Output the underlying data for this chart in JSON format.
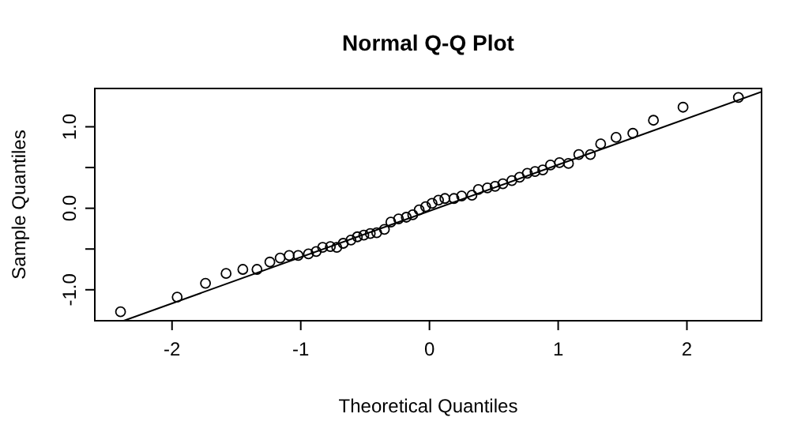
{
  "chart_data": {
    "type": "scatter",
    "title": "Normal Q-Q Plot",
    "xlabel": "Theoretical Quantiles",
    "ylabel": "Sample Quantiles",
    "xlim": [
      -2.6,
      2.58
    ],
    "ylim": [
      -1.38,
      1.47
    ],
    "xticks": [
      -2,
      -1,
      0,
      1,
      2
    ],
    "yticks": [
      {
        "value": -1,
        "label": "-1.0"
      },
      {
        "value": -0.5,
        "label": null
      },
      {
        "value": 0,
        "label": "0.0"
      },
      {
        "value": 0.5,
        "label": null
      },
      {
        "value": 1,
        "label": "1.0"
      }
    ],
    "grid": false,
    "series": [
      {
        "color": "#000000",
        "marker": "circle",
        "x": [
          -2.4,
          -1.96,
          -1.74,
          -1.58,
          -1.45,
          -1.34,
          -1.24,
          -1.16,
          -1.09,
          -1.02,
          -0.94,
          -0.88,
          -0.83,
          -0.77,
          -0.72,
          -0.67,
          -0.61,
          -0.56,
          -0.51,
          -0.46,
          -0.41,
          -0.35,
          -0.3,
          -0.24,
          -0.18,
          -0.13,
          -0.08,
          -0.03,
          0.02,
          0.07,
          0.12,
          0.19,
          0.25,
          0.33,
          0.38,
          0.45,
          0.51,
          0.57,
          0.64,
          0.7,
          0.76,
          0.82,
          0.88,
          0.94,
          1.01,
          1.08,
          1.16,
          1.25,
          1.33,
          1.45,
          1.58,
          1.74,
          1.97,
          2.4
        ],
        "values": [
          -1.27,
          -1.09,
          -0.92,
          -0.8,
          -0.75,
          -0.75,
          -0.66,
          -0.61,
          -0.58,
          -0.58,
          -0.56,
          -0.53,
          -0.48,
          -0.47,
          -0.48,
          -0.43,
          -0.39,
          -0.35,
          -0.33,
          -0.31,
          -0.3,
          -0.26,
          -0.17,
          -0.13,
          -0.11,
          -0.08,
          -0.02,
          0.02,
          0.06,
          0.1,
          0.12,
          0.12,
          0.15,
          0.16,
          0.23,
          0.25,
          0.27,
          0.3,
          0.34,
          0.38,
          0.43,
          0.45,
          0.47,
          0.53,
          0.56,
          0.55,
          0.66,
          0.66,
          0.79,
          0.87,
          0.92,
          1.08,
          1.24,
          1.36
        ]
      },
      {
        "type": "line",
        "color": "#000000",
        "line_style": "solid",
        "marker": "none",
        "x": [
          -2.375,
          2.58
        ],
        "values": [
          -1.38,
          1.43
        ]
      }
    ]
  }
}
